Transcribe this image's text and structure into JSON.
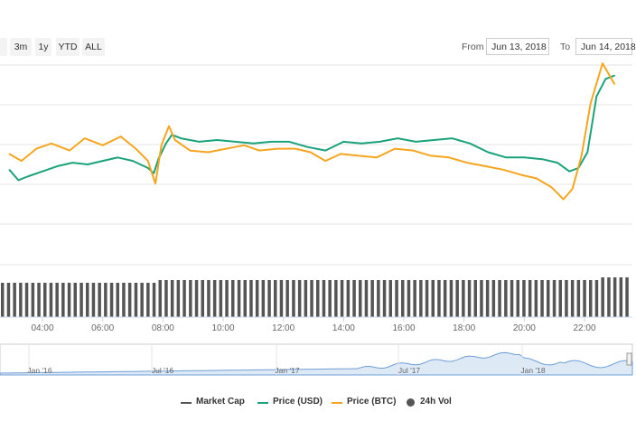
{
  "toolbar": {
    "zoom_buttons": [
      "3m",
      "1y",
      "YTD",
      "ALL"
    ],
    "from_label": "From",
    "from_value": "Jun 13, 2018",
    "to_label": "To",
    "to_value": "Jun 14, 2018"
  },
  "legend": [
    {
      "label": "Market Cap",
      "color": "#555555",
      "shape": "line"
    },
    {
      "label": "Price (USD)",
      "color": "#1aa27a",
      "shape": "line"
    },
    {
      "label": "Price (BTC)",
      "color": "#f7a51e",
      "shape": "line"
    },
    {
      "label": "24h Vol",
      "color": "#555555",
      "shape": "dot"
    }
  ],
  "chart_data": {
    "type": "line",
    "x_tick_labels": [
      "04:00",
      "06:00",
      "08:00",
      "10:00",
      "12:00",
      "14:00",
      "16:00",
      "18:00",
      "20:00",
      "22:00"
    ],
    "x_range_hours": [
      2.9,
      23.0
    ],
    "y_range": [
      0,
      100
    ],
    "y_axis_labels_visible": false,
    "grid": true,
    "series": [
      {
        "name": "Price (USD)",
        "color": "#1aa27a",
        "points": [
          [
            2.9,
            40
          ],
          [
            3.2,
            34
          ],
          [
            3.5,
            36
          ],
          [
            4.0,
            39
          ],
          [
            4.5,
            42
          ],
          [
            5.0,
            44
          ],
          [
            5.5,
            43
          ],
          [
            6.0,
            45
          ],
          [
            6.5,
            47
          ],
          [
            7.0,
            45
          ],
          [
            7.5,
            41
          ],
          [
            7.7,
            38
          ],
          [
            7.85,
            46
          ],
          [
            8.1,
            55
          ],
          [
            8.3,
            60
          ],
          [
            8.6,
            58
          ],
          [
            9.2,
            56
          ],
          [
            9.8,
            57
          ],
          [
            10.4,
            56
          ],
          [
            11.0,
            55
          ],
          [
            11.6,
            56
          ],
          [
            12.2,
            56
          ],
          [
            12.8,
            53
          ],
          [
            13.4,
            51
          ],
          [
            14.0,
            56
          ],
          [
            14.6,
            55
          ],
          [
            15.2,
            56
          ],
          [
            15.8,
            58
          ],
          [
            16.4,
            56
          ],
          [
            17.0,
            57
          ],
          [
            17.6,
            58
          ],
          [
            18.2,
            55
          ],
          [
            18.8,
            50
          ],
          [
            19.4,
            47
          ],
          [
            20.0,
            47
          ],
          [
            20.6,
            46
          ],
          [
            21.1,
            44
          ],
          [
            21.5,
            39
          ],
          [
            21.8,
            41
          ],
          [
            22.1,
            50
          ],
          [
            22.4,
            82
          ],
          [
            22.7,
            92
          ],
          [
            23.0,
            94
          ]
        ]
      },
      {
        "name": "Price (BTC)",
        "color": "#f7a51e",
        "points": [
          [
            2.9,
            49
          ],
          [
            3.3,
            45
          ],
          [
            3.8,
            52
          ],
          [
            4.3,
            55
          ],
          [
            4.9,
            51
          ],
          [
            5.4,
            58
          ],
          [
            6.0,
            54
          ],
          [
            6.6,
            59
          ],
          [
            7.1,
            52
          ],
          [
            7.5,
            45
          ],
          [
            7.75,
            32
          ],
          [
            7.95,
            54
          ],
          [
            8.2,
            65
          ],
          [
            8.4,
            57
          ],
          [
            8.9,
            51
          ],
          [
            9.5,
            50
          ],
          [
            10.1,
            52
          ],
          [
            10.7,
            54
          ],
          [
            11.2,
            51
          ],
          [
            11.8,
            52
          ],
          [
            12.4,
            52
          ],
          [
            12.9,
            50
          ],
          [
            13.4,
            45
          ],
          [
            13.9,
            49
          ],
          [
            14.5,
            48
          ],
          [
            15.1,
            47
          ],
          [
            15.7,
            52
          ],
          [
            16.3,
            51
          ],
          [
            16.9,
            48
          ],
          [
            17.5,
            47
          ],
          [
            18.1,
            44
          ],
          [
            18.7,
            42
          ],
          [
            19.3,
            40
          ],
          [
            19.9,
            37
          ],
          [
            20.4,
            35
          ],
          [
            20.9,
            30
          ],
          [
            21.3,
            23
          ],
          [
            21.6,
            29
          ],
          [
            21.9,
            48
          ],
          [
            22.2,
            78
          ],
          [
            22.6,
            101
          ],
          [
            23.0,
            89
          ]
        ]
      }
    ],
    "volume_bars": 104,
    "navigator": {
      "x_tick_labels": [
        "Jan '16",
        "Jul '16",
        "Jan '17",
        "Jul '17",
        "Jan '18"
      ]
    }
  }
}
